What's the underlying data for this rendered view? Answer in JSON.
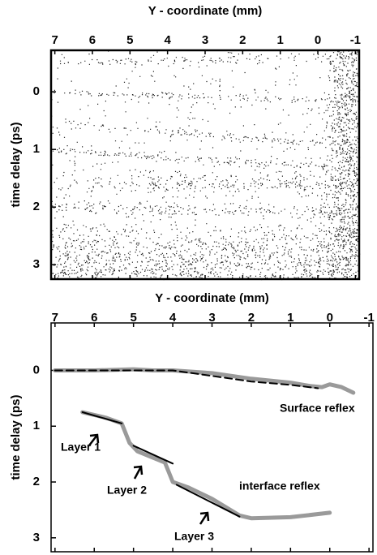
{
  "chart_data": [
    {
      "type": "image",
      "xlabel": "Y - coordinate (mm)",
      "ylabel": "time delay (ps)",
      "xlim": [
        -1.1,
        7.1
      ],
      "x_inverted": true,
      "xticks": [
        7,
        6,
        5,
        4,
        3,
        2,
        1,
        0,
        -1
      ],
      "ylim": [
        -0.72,
        3.25
      ],
      "y_inverted": true,
      "yticks": [
        0,
        1,
        2,
        3
      ]
    },
    {
      "type": "line",
      "xlabel": "Y - coordinate (mm)",
      "ylabel": "time delay (ps)",
      "xlim": [
        -1.1,
        7.1
      ],
      "x_inverted": true,
      "xticks": [
        7,
        6,
        5,
        4,
        3,
        2,
        1,
        0,
        -1
      ],
      "ylim": [
        -0.85,
        3.25
      ],
      "y_inverted": true,
      "yticks": [
        0,
        1,
        2,
        3
      ],
      "series": [
        {
          "color": "#9a9a9a",
          "width": 5,
          "dash": false,
          "x": [
            7,
            6,
            5,
            4.5,
            4,
            3,
            2,
            1,
            0.5,
            0.2,
            0,
            -0.3,
            -0.6
          ],
          "values": [
            0,
            0,
            -0.02,
            0,
            0,
            0.05,
            0.15,
            0.22,
            0.28,
            0.3,
            0.25,
            0.3,
            0.4
          ]
        },
        {
          "color": "#9a9a9a",
          "width": 5,
          "dash": false,
          "x": [
            6.3,
            5.7,
            5.3,
            5.1,
            4.9,
            4.2,
            4.0,
            3.6,
            3.0,
            2.3,
            2.0,
            1.0,
            0.0
          ],
          "values": [
            0.75,
            0.85,
            0.95,
            1.3,
            1.45,
            1.65,
            2.0,
            2.1,
            2.3,
            2.6,
            2.65,
            2.63,
            2.55
          ]
        },
        {
          "color": "#000000",
          "width": 2,
          "dash": true,
          "x": [
            7,
            5,
            4,
            3,
            2,
            1,
            0.3
          ],
          "values": [
            0,
            0,
            0,
            0.1,
            0.2,
            0.26,
            0.32
          ]
        },
        {
          "color": "#000000",
          "width": 2,
          "dash": false,
          "x": [
            6.3,
            5.3,
            null,
            5.0,
            4.0,
            null,
            3.9,
            2.3
          ],
          "values": [
            0.75,
            0.95,
            null,
            1.35,
            1.67,
            null,
            2.05,
            2.62
          ]
        }
      ],
      "annotations": [
        "Surface reflex",
        "interface reflex",
        "Layer 1",
        "Layer 2",
        "Layer 3"
      ]
    }
  ]
}
